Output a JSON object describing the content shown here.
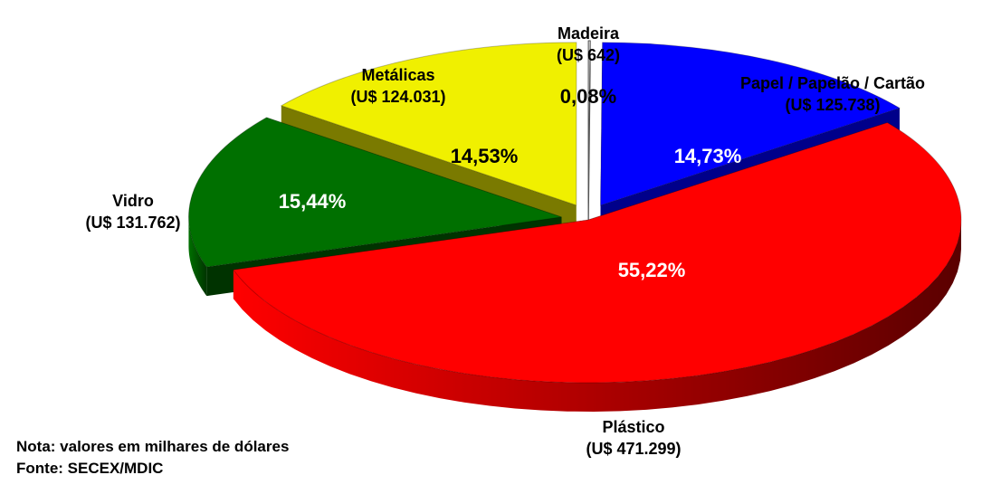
{
  "chart_data": {
    "type": "pie",
    "style": "3d-exploded",
    "unit_note": "Nota: valores em milhares de dólares",
    "slices": [
      {
        "name": "Papel / Papelão / Cartão",
        "value_label": "(U$ 125.738)",
        "value": 125738,
        "percent": 14.73,
        "percent_label": "14,73%",
        "color": "#0000ff",
        "dark": "#00008a"
      },
      {
        "name": "Plástico",
        "value_label": "(U$ 471.299)",
        "value": 471299,
        "percent": 55.22,
        "percent_label": "55,22%",
        "color": "#ff0000",
        "dark": "#5a0000"
      },
      {
        "name": "Vidro",
        "value_label": "(U$ 131.762)",
        "value": 131762,
        "percent": 15.44,
        "percent_label": "15,44%",
        "color": "#007000",
        "dark": "#003300"
      },
      {
        "name": "Metálicas",
        "value_label": "(U$ 124.031)",
        "value": 124031,
        "percent": 14.53,
        "percent_label": "14,53%",
        "color": "#f0f000",
        "dark": "#7a7a00"
      },
      {
        "name": "Madeira",
        "value_label": "(U$ 642)",
        "value": 642,
        "percent": 0.08,
        "percent_label": "0,08%",
        "color": "#ffffff",
        "dark": "#bdbdbd"
      }
    ]
  },
  "notes": {
    "nota": "Nota: valores em milhares de dólares",
    "fonte": "Fonte: SECEX/MDIC"
  }
}
